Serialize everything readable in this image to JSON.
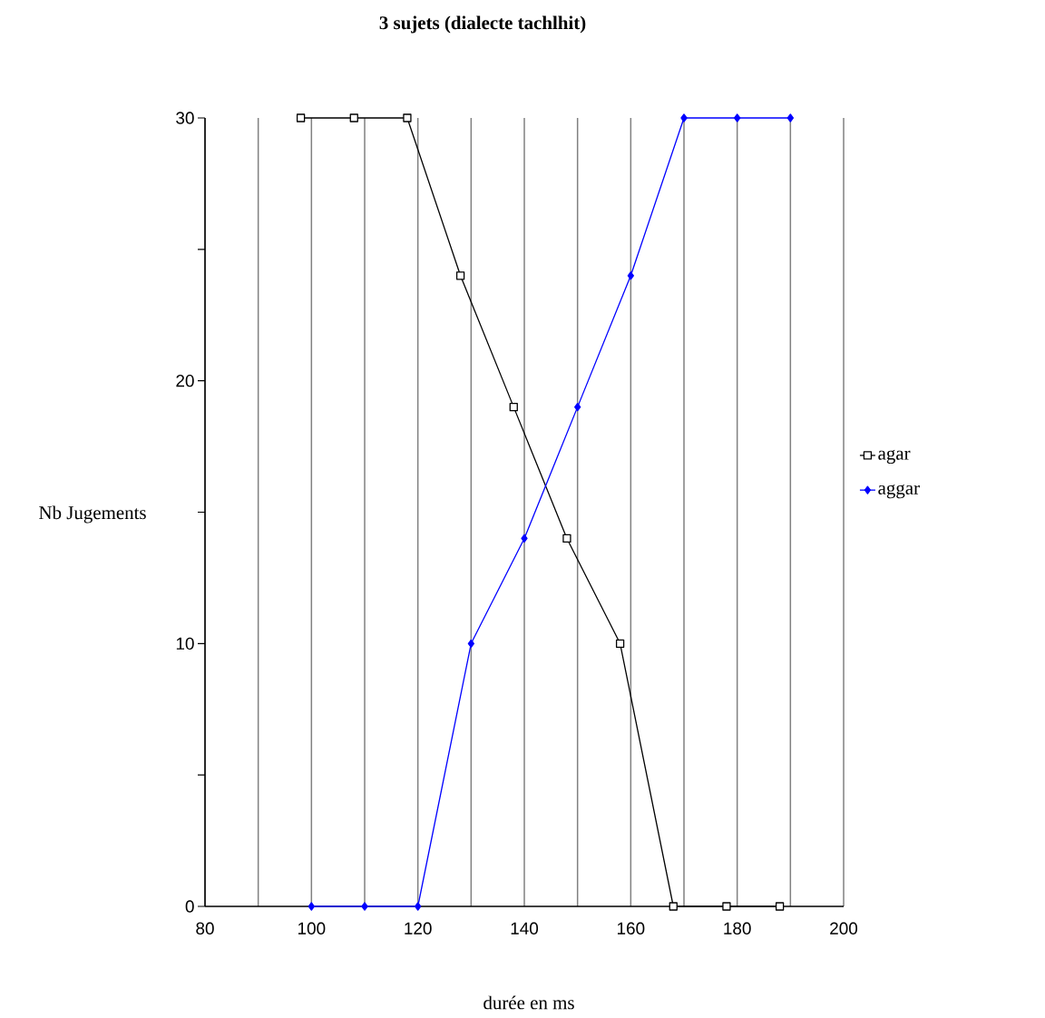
{
  "chart_data": {
    "type": "line",
    "title": "3 sujets (dialecte tachlhit)",
    "xlabel": "durée en ms",
    "ylabel": "Nb Jugements",
    "series": [
      {
        "name": "agar",
        "color": "#000000",
        "marker": "square",
        "x": [
          98,
          108,
          118,
          128,
          138,
          148,
          158,
          168,
          178,
          188
        ],
        "values": [
          30,
          30,
          30,
          24,
          19,
          14,
          10,
          0,
          0,
          0
        ]
      },
      {
        "name": "aggar",
        "color": "#0000ff",
        "marker": "diamond",
        "x": [
          100,
          110,
          120,
          130,
          140,
          150,
          160,
          170,
          180,
          190
        ],
        "values": [
          0,
          0,
          0,
          10,
          14,
          19,
          24,
          30,
          30,
          30
        ]
      }
    ],
    "xlim": [
      80,
      200
    ],
    "ylim": [
      0,
      30
    ],
    "xticks": [
      80,
      {
        "value": 90,
        "label": null
      },
      100,
      {
        "value": 110,
        "label": null
      },
      120,
      {
        "value": 130,
        "label": null
      },
      140,
      {
        "value": 150,
        "label": null
      },
      160,
      {
        "value": 170,
        "label": null
      },
      180,
      {
        "value": 190,
        "label": null
      },
      200
    ],
    "yticks": [
      0,
      {
        "value": 5,
        "label": null
      },
      10,
      {
        "value": 15,
        "label": null
      },
      20,
      {
        "value": 25,
        "label": null
      },
      30
    ],
    "grid": "x",
    "legend": "right",
    "line_style": "solid"
  }
}
